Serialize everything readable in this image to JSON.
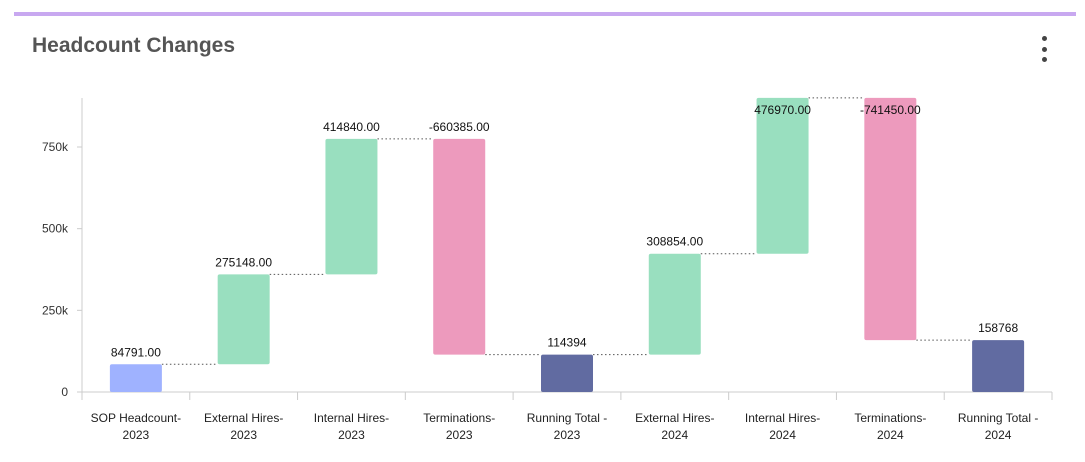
{
  "card": {
    "title": "Headcount Changes",
    "menu_icon": "more-vertical-icon",
    "accent_color": "#c8a8f0"
  },
  "chart_data": {
    "type": "waterfall",
    "title": "Headcount Changes",
    "xlabel": "",
    "ylabel": "",
    "ylim": [
      0,
      900000
    ],
    "yticks": [
      {
        "value": 0,
        "label": "0"
      },
      {
        "value": 250000,
        "label": "250k"
      },
      {
        "value": 500000,
        "label": "500k"
      },
      {
        "value": 750000,
        "label": "750k"
      }
    ],
    "grid": false,
    "connectors": "dotted",
    "bars": [
      {
        "category": [
          "SOP Headcount-",
          "2023"
        ],
        "kind": "start",
        "start": 0,
        "end": 84791,
        "label": "84791.00",
        "color": "#9fb2ff"
      },
      {
        "category": [
          "External Hires-",
          "2023"
        ],
        "kind": "increase",
        "start": 84791,
        "end": 359939,
        "label": "275148.00",
        "color": "#99dfbf"
      },
      {
        "category": [
          "Internal Hires-",
          "2023"
        ],
        "kind": "increase",
        "start": 359939,
        "end": 774779,
        "label": "414840.00",
        "color": "#99dfbf"
      },
      {
        "category": [
          "Terminations-",
          "2023"
        ],
        "kind": "decrease",
        "start": 774779,
        "end": 114394,
        "label": "-660385.00",
        "color": "#ed9abd"
      },
      {
        "category": [
          "Running Total -",
          "2023"
        ],
        "kind": "total",
        "start": 0,
        "end": 114394,
        "label": "114394",
        "color": "#616ba1"
      },
      {
        "category": [
          "External Hires-",
          "2024"
        ],
        "kind": "increase",
        "start": 114394,
        "end": 423248,
        "label": "308854.00",
        "color": "#99dfbf"
      },
      {
        "category": [
          "Internal Hires-",
          "2024"
        ],
        "kind": "increase",
        "start": 423248,
        "end": 900218,
        "label": "476970.00",
        "color": "#99dfbf"
      },
      {
        "category": [
          "Terminations-",
          "2024"
        ],
        "kind": "decrease",
        "start": 900218,
        "end": 158768,
        "label": "-741450.00",
        "color": "#ed9abd"
      },
      {
        "category": [
          "Running Total -",
          "2024"
        ],
        "kind": "total",
        "start": 0,
        "end": 158768,
        "label": "158768",
        "color": "#616ba1"
      }
    ]
  }
}
